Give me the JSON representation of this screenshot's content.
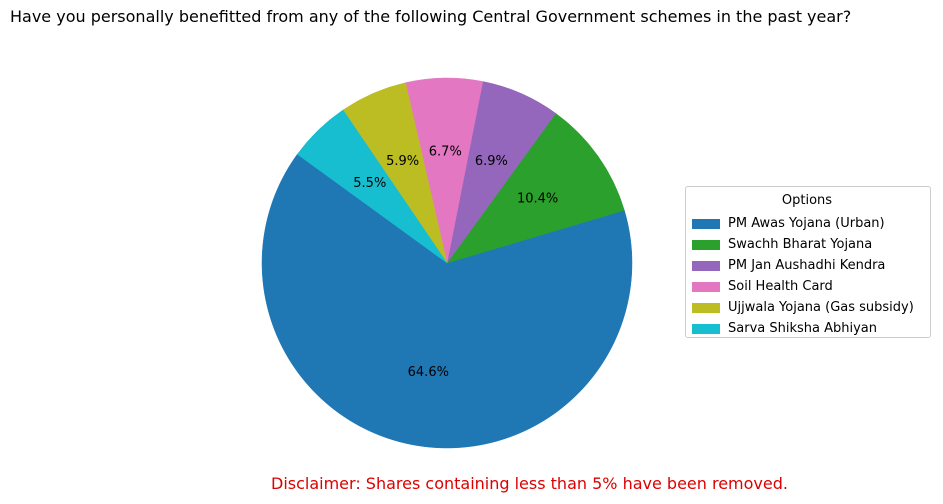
{
  "chart_data": {
    "type": "pie",
    "title": "Have you personally benefitted from any of the following Central Government schemes in the past year?",
    "legend_title": "Options",
    "legend_position": "right",
    "start_angle_deg": 144,
    "direction": "counterclockwise",
    "slices": [
      {
        "label": "PM Awas Yojana (Urban)",
        "value": 64.6,
        "display": "64.6%",
        "color": "#1f77b4"
      },
      {
        "label": "Swachh Bharat Yojana",
        "value": 10.4,
        "display": "10.4%",
        "color": "#2ca02c"
      },
      {
        "label": "PM Jan Aushadhi Kendra",
        "value": 6.9,
        "display": "6.9%",
        "color": "#9467bd"
      },
      {
        "label": "Soil Health Card",
        "value": 6.7,
        "display": "6.7%",
        "color": "#e377c2"
      },
      {
        "label": "Ujjwala Yojana (Gas subsidy)",
        "value": 5.9,
        "display": "5.9%",
        "color": "#bcbd22"
      },
      {
        "label": "Sarva Shiksha Abhiyan",
        "value": 5.5,
        "display": "5.5%",
        "color": "#17becf"
      }
    ],
    "disclaimer": "Disclaimer: Shares containing less than 5% have been removed."
  }
}
